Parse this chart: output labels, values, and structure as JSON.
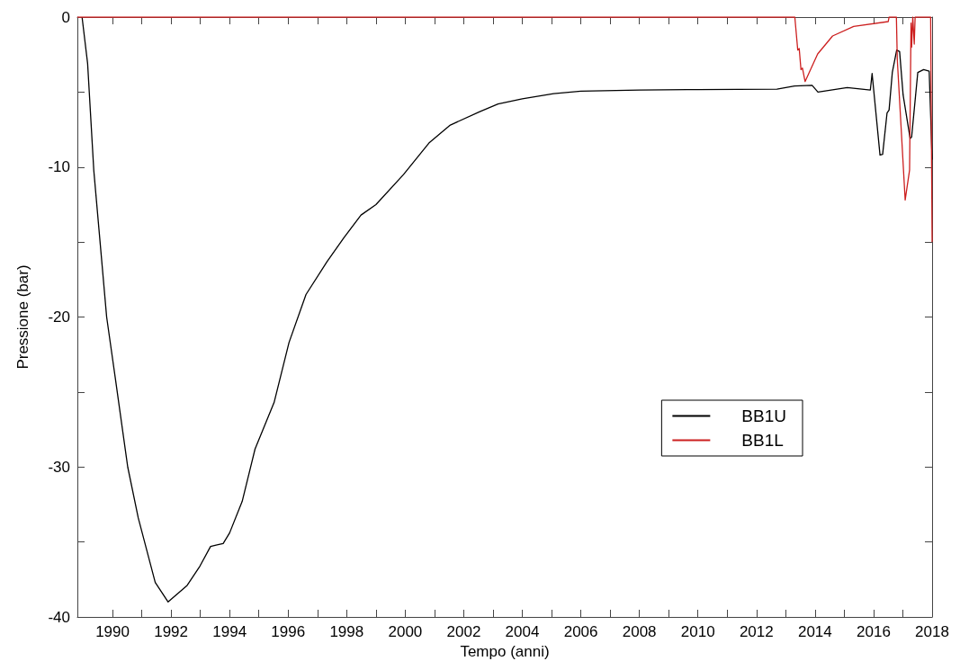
{
  "chart_data": {
    "type": "line",
    "xlabel": "Tempo (anni)",
    "ylabel": "Pressione (bar)",
    "xlim": [
      1988.8,
      2018
    ],
    "xticks": [
      1990,
      {
        "value": 1991,
        "label": null
      },
      1992,
      {
        "value": 1993,
        "label": null
      },
      1994,
      {
        "value": 1995,
        "label": null
      },
      1996,
      {
        "value": 1997,
        "label": null
      },
      1998,
      {
        "value": 1999,
        "label": null
      },
      2000,
      {
        "value": 2001,
        "label": null
      },
      2002,
      {
        "value": 2003,
        "label": null
      },
      2004,
      {
        "value": 2005,
        "label": null
      },
      2006,
      {
        "value": 2007,
        "label": null
      },
      2008,
      {
        "value": 2009,
        "label": null
      },
      2010,
      {
        "value": 2011,
        "label": null
      },
      2012,
      {
        "value": 2013,
        "label": null
      },
      2014,
      {
        "value": 2015,
        "label": null
      },
      2016,
      {
        "value": 2017,
        "label": null
      },
      2018
    ],
    "ylim": [
      -40,
      0
    ],
    "yticks": [
      -40,
      {
        "value": -35,
        "label": null
      },
      -30,
      {
        "value": -25,
        "label": null
      },
      -20,
      {
        "value": -15,
        "label": null
      },
      -10,
      {
        "value": -5,
        "label": null
      },
      0
    ],
    "grid": false,
    "legend": "right",
    "line_style": "solid",
    "series": [
      {
        "name": "BB1U",
        "color": "#000000",
        "x": [
          1988.96,
          1989.15,
          1989.36,
          1989.8,
          1990.09,
          1990.52,
          1990.88,
          1991.46,
          1991.9,
          1992.55,
          1992.99,
          1993.35,
          1993.57,
          1993.78,
          1994.0,
          1994.43,
          1994.87,
          1995.52,
          1996.03,
          1996.61,
          1997.33,
          1997.91,
          1998.49,
          1999.0,
          1999.94,
          2000.81,
          2001.54,
          2002.55,
          2003.17,
          2004.0,
          2005.07,
          2006.0,
          2008.0,
          2010.0,
          2012.7,
          2013.3,
          2013.9,
          2014.1,
          2015.1,
          2015.89,
          2015.95,
          2016.22,
          2016.31,
          2016.46,
          2016.53,
          2016.64,
          2016.79,
          2016.89,
          2017.01,
          2017.25,
          2017.3,
          2017.51,
          2017.71,
          2017.9,
          2018.0
        ],
        "values": [
          0,
          -3.1,
          -10.2,
          -20,
          -24,
          -30,
          -33.4,
          -37.7,
          -39,
          -37.9,
          -36.6,
          -35.3,
          -35.2,
          -35.1,
          -34.4,
          -32.3,
          -28.8,
          -25.7,
          -21.7,
          -18.5,
          -16.3,
          -14.7,
          -13.2,
          -12.5,
          -10.5,
          -8.4,
          -7.2,
          -6.3,
          -5.8,
          -5.45,
          -5.1,
          -4.94,
          -4.86,
          -4.83,
          -4.8,
          -4.6,
          -4.55,
          -5.0,
          -4.7,
          -4.86,
          -3.76,
          -9.2,
          -9.15,
          -6.4,
          -6.2,
          -3.7,
          -2.2,
          -2.3,
          -5.2,
          -8.1,
          -8.0,
          -3.7,
          -3.5,
          -3.6,
          -9.5
        ]
      },
      {
        "name": "BB1L",
        "color": "#cc1f1f",
        "x": [
          1988.8,
          2013.31,
          2013.41,
          2013.46,
          2013.52,
          2013.57,
          2013.66,
          2014.09,
          2014.6,
          2015.32,
          2016.5,
          2016.53,
          2016.78,
          2016.81,
          2017.08,
          2017.23,
          2017.28,
          2017.3,
          2017.34,
          2017.39,
          2017.42,
          2017.95,
          2018.0
        ],
        "values": [
          0,
          0,
          -2.2,
          -2.1,
          -3.5,
          -3.4,
          -4.3,
          -2.46,
          -1.26,
          -0.62,
          -0.3,
          0,
          0,
          -2.8,
          -12.2,
          -10.2,
          -0.4,
          -2.0,
          0,
          -1.8,
          0,
          0,
          -15
        ]
      }
    ]
  }
}
